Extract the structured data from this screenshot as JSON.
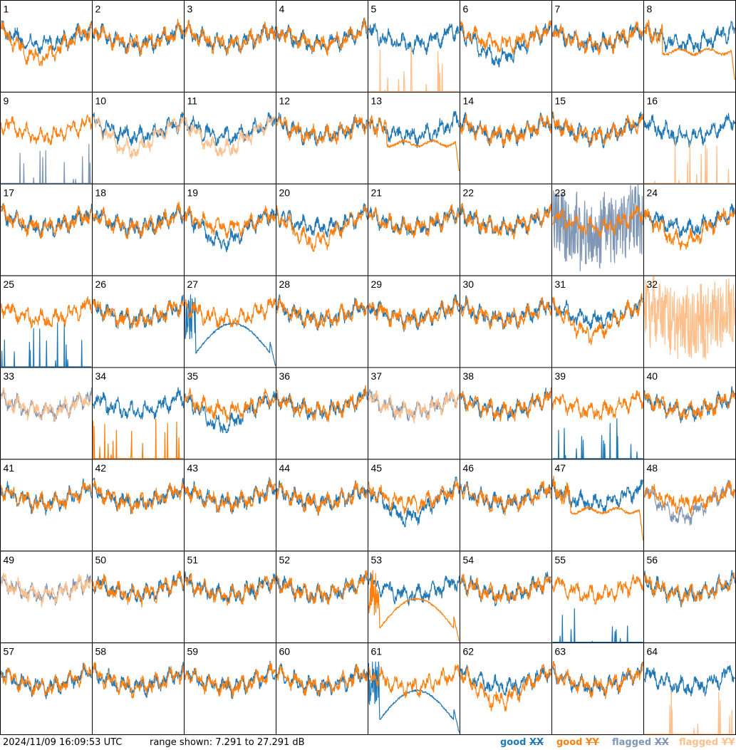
{
  "footer": {
    "timestamp": "2024/11/09 16:09:53 UTC",
    "range": "range shown: 7.291 to 27.291 dB",
    "legend": [
      {
        "prefix": "good",
        "pol": "XX",
        "color": "#1f77b4"
      },
      {
        "prefix": "good",
        "pol": "YY",
        "color": "#ff7f0e"
      },
      {
        "prefix": "flagged",
        "pol": "XX",
        "color": "#7f97b5"
      },
      {
        "prefix": "flagged",
        "pol": "YY",
        "color": "#ffbf8a"
      }
    ]
  },
  "chart_data": {
    "type": "line",
    "layout": "8x8 small multiples of spectra per antenna",
    "ylim": [
      7.291,
      27.291
    ],
    "yunit": "dB",
    "colors": {
      "good_xx": "#1f77b4",
      "good_yy": "#ff7f0e",
      "flagged_xx": "#7f97b5",
      "flagged_yy": "#ffbf8a"
    },
    "panels": [
      {
        "id": 1,
        "xx": "good",
        "yy": "good",
        "xx_shape": "normal",
        "yy_shape": "dip"
      },
      {
        "id": 2,
        "xx": "good",
        "yy": "good",
        "xx_shape": "normal",
        "yy_shape": "normal"
      },
      {
        "id": 3,
        "xx": "good",
        "yy": "good",
        "xx_shape": "normal",
        "yy_shape": "normal"
      },
      {
        "id": 4,
        "xx": "good",
        "yy": "good",
        "xx_shape": "normal",
        "yy_shape": "normal"
      },
      {
        "id": 5,
        "xx": "good",
        "yy": "flagged",
        "xx_shape": "normal",
        "yy_shape": "spikes"
      },
      {
        "id": 6,
        "xx": "good",
        "yy": "good",
        "xx_shape": "dip",
        "yy_shape": "normal"
      },
      {
        "id": 7,
        "xx": "good",
        "yy": "good",
        "xx_shape": "normal",
        "yy_shape": "normal"
      },
      {
        "id": 8,
        "xx": "good",
        "yy": "good",
        "xx_shape": "normal",
        "yy_shape": "flatdrop"
      },
      {
        "id": 9,
        "xx": "flagged",
        "yy": "good",
        "xx_shape": "spikes",
        "yy_shape": "normal"
      },
      {
        "id": 10,
        "xx": "good",
        "yy": "flagged",
        "xx_shape": "normal",
        "yy_shape": "dip"
      },
      {
        "id": 11,
        "xx": "good",
        "yy": "flagged",
        "xx_shape": "normal",
        "yy_shape": "dip"
      },
      {
        "id": 12,
        "xx": "good",
        "yy": "good",
        "xx_shape": "normal",
        "yy_shape": "normal"
      },
      {
        "id": 13,
        "xx": "good",
        "yy": "good",
        "xx_shape": "normal",
        "yy_shape": "flatdrop"
      },
      {
        "id": 14,
        "xx": "good",
        "yy": "good",
        "xx_shape": "normal",
        "yy_shape": "normal"
      },
      {
        "id": 15,
        "xx": "good",
        "yy": "good",
        "xx_shape": "normal",
        "yy_shape": "normal"
      },
      {
        "id": 16,
        "xx": "good",
        "yy": "flagged",
        "xx_shape": "normal",
        "yy_shape": "spikes"
      },
      {
        "id": 17,
        "xx": "good",
        "yy": "good",
        "xx_shape": "normal",
        "yy_shape": "normal"
      },
      {
        "id": 18,
        "xx": "good",
        "yy": "good",
        "xx_shape": "normal",
        "yy_shape": "normal"
      },
      {
        "id": 19,
        "xx": "good",
        "yy": "good",
        "xx_shape": "dip",
        "yy_shape": "normal"
      },
      {
        "id": 20,
        "xx": "good",
        "yy": "good",
        "xx_shape": "normal",
        "yy_shape": "dip"
      },
      {
        "id": 21,
        "xx": "good",
        "yy": "good",
        "xx_shape": "normal",
        "yy_shape": "normal"
      },
      {
        "id": 22,
        "xx": "good",
        "yy": "good",
        "xx_shape": "normal",
        "yy_shape": "normal"
      },
      {
        "id": 23,
        "xx": "flagged",
        "yy": "good",
        "xx_shape": "noisy",
        "yy_shape": "normal"
      },
      {
        "id": 24,
        "xx": "good",
        "yy": "good",
        "xx_shape": "normal",
        "yy_shape": "dip"
      },
      {
        "id": 25,
        "xx": "good",
        "yy": "good",
        "xx_shape": "spikes",
        "yy_shape": "normal"
      },
      {
        "id": 26,
        "xx": "good",
        "yy": "good",
        "xx_shape": "normal",
        "yy_shape": "normal"
      },
      {
        "id": 27,
        "xx": "good",
        "yy": "good",
        "xx_shape": "arch",
        "yy_shape": "normal"
      },
      {
        "id": 28,
        "xx": "good",
        "yy": "good",
        "xx_shape": "normal",
        "yy_shape": "normal"
      },
      {
        "id": 29,
        "xx": "good",
        "yy": "good",
        "xx_shape": "normal",
        "yy_shape": "normal"
      },
      {
        "id": 30,
        "xx": "good",
        "yy": "good",
        "xx_shape": "normal",
        "yy_shape": "normal"
      },
      {
        "id": 31,
        "xx": "good",
        "yy": "good",
        "xx_shape": "normal",
        "yy_shape": "dip"
      },
      {
        "id": 32,
        "xx": "none",
        "yy": "flagged",
        "xx_shape": "none",
        "yy_shape": "noisy"
      },
      {
        "id": 33,
        "xx": "flagged",
        "yy": "flagged",
        "xx_shape": "normal",
        "yy_shape": "normal"
      },
      {
        "id": 34,
        "xx": "good",
        "yy": "good",
        "xx_shape": "normal",
        "yy_shape": "spikes"
      },
      {
        "id": 35,
        "xx": "good",
        "yy": "good",
        "xx_shape": "dip",
        "yy_shape": "normal"
      },
      {
        "id": 36,
        "xx": "good",
        "yy": "good",
        "xx_shape": "normal",
        "yy_shape": "normal"
      },
      {
        "id": 37,
        "xx": "flagged",
        "yy": "flagged",
        "xx_shape": "normal",
        "yy_shape": "normal"
      },
      {
        "id": 38,
        "xx": "good",
        "yy": "good",
        "xx_shape": "normal",
        "yy_shape": "normal"
      },
      {
        "id": 39,
        "xx": "good",
        "yy": "good",
        "xx_shape": "spikes",
        "yy_shape": "normal"
      },
      {
        "id": 40,
        "xx": "good",
        "yy": "good",
        "xx_shape": "normal",
        "yy_shape": "normal"
      },
      {
        "id": 41,
        "xx": "good",
        "yy": "good",
        "xx_shape": "normal",
        "yy_shape": "normal"
      },
      {
        "id": 42,
        "xx": "good",
        "yy": "good",
        "xx_shape": "normal",
        "yy_shape": "normal"
      },
      {
        "id": 43,
        "xx": "good",
        "yy": "good",
        "xx_shape": "normal",
        "yy_shape": "normal"
      },
      {
        "id": 44,
        "xx": "good",
        "yy": "good",
        "xx_shape": "normal",
        "yy_shape": "normal"
      },
      {
        "id": 45,
        "xx": "good",
        "yy": "good",
        "xx_shape": "dip",
        "yy_shape": "normal"
      },
      {
        "id": 46,
        "xx": "good",
        "yy": "good",
        "xx_shape": "normal",
        "yy_shape": "normal"
      },
      {
        "id": 47,
        "xx": "good",
        "yy": "good",
        "xx_shape": "normal",
        "yy_shape": "flatdrop"
      },
      {
        "id": 48,
        "xx": "flagged",
        "yy": "good",
        "xx_shape": "dip",
        "yy_shape": "normal"
      },
      {
        "id": 49,
        "xx": "flagged",
        "yy": "flagged",
        "xx_shape": "normal",
        "yy_shape": "normal"
      },
      {
        "id": 50,
        "xx": "good",
        "yy": "good",
        "xx_shape": "normal",
        "yy_shape": "normal"
      },
      {
        "id": 51,
        "xx": "good",
        "yy": "good",
        "xx_shape": "normal",
        "yy_shape": "normal"
      },
      {
        "id": 52,
        "xx": "good",
        "yy": "good",
        "xx_shape": "normal",
        "yy_shape": "normal"
      },
      {
        "id": 53,
        "xx": "good",
        "yy": "good",
        "xx_shape": "normal",
        "yy_shape": "arch"
      },
      {
        "id": 54,
        "xx": "good",
        "yy": "good",
        "xx_shape": "normal",
        "yy_shape": "normal"
      },
      {
        "id": 55,
        "xx": "good",
        "yy": "good",
        "xx_shape": "spikes",
        "yy_shape": "normal"
      },
      {
        "id": 56,
        "xx": "good",
        "yy": "good",
        "xx_shape": "normal",
        "yy_shape": "normal"
      },
      {
        "id": 57,
        "xx": "good",
        "yy": "good",
        "xx_shape": "normal",
        "yy_shape": "normal"
      },
      {
        "id": 58,
        "xx": "good",
        "yy": "good",
        "xx_shape": "normal",
        "yy_shape": "normal"
      },
      {
        "id": 59,
        "xx": "good",
        "yy": "good",
        "xx_shape": "normal",
        "yy_shape": "normal"
      },
      {
        "id": 60,
        "xx": "good",
        "yy": "good",
        "xx_shape": "normal",
        "yy_shape": "normal"
      },
      {
        "id": 61,
        "xx": "good",
        "yy": "good",
        "xx_shape": "arch",
        "yy_shape": "normal"
      },
      {
        "id": 62,
        "xx": "good",
        "yy": "good",
        "xx_shape": "normal",
        "yy_shape": "dip"
      },
      {
        "id": 63,
        "xx": "good",
        "yy": "good",
        "xx_shape": "normal",
        "yy_shape": "normal"
      },
      {
        "id": 64,
        "xx": "good",
        "yy": "flagged",
        "xx_shape": "normal",
        "yy_shape": "spikes"
      }
    ]
  }
}
